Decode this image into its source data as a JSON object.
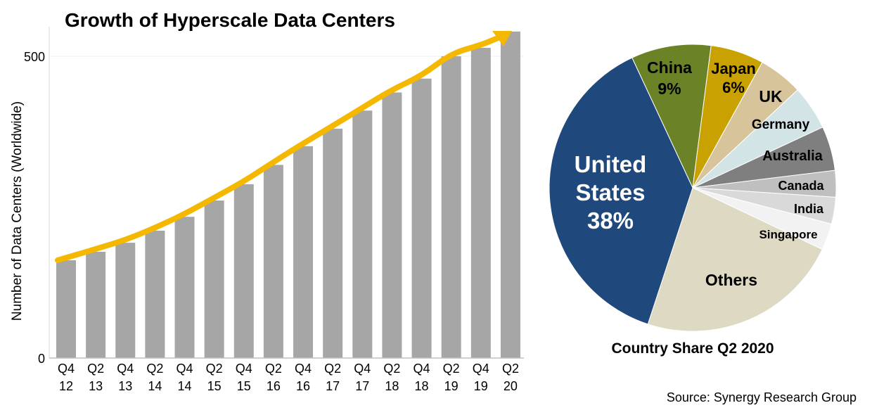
{
  "chart_data": [
    {
      "type": "bar",
      "title": "Growth of Hyperscale Data Centers",
      "ylabel": "Number of Data Centers (Worldwide)",
      "xlabel": "",
      "categories": [
        [
          "Q4",
          "12"
        ],
        [
          "Q2",
          "13"
        ],
        [
          "Q4",
          "13"
        ],
        [
          "Q2",
          "14"
        ],
        [
          "Q4",
          "14"
        ],
        [
          "Q2",
          "15"
        ],
        [
          "Q4",
          "15"
        ],
        [
          "Q2",
          "16"
        ],
        [
          "Q4",
          "16"
        ],
        [
          "Q2",
          "17"
        ],
        [
          "Q4",
          "17"
        ],
        [
          "Q2",
          "18"
        ],
        [
          "Q4",
          "18"
        ],
        [
          "Q2",
          "19"
        ],
        [
          "Q4",
          "19"
        ],
        [
          "Q2",
          "20"
        ]
      ],
      "values": [
        162,
        176,
        191,
        211,
        234,
        261,
        288,
        320,
        351,
        380,
        410,
        440,
        463,
        500,
        514,
        541
      ],
      "ylim": [
        0,
        550
      ],
      "yticks": [
        0,
        500
      ],
      "grid": true,
      "bar_color": "#A6A6A6",
      "trend_arrow_color": "#F5B800"
    },
    {
      "type": "pie",
      "title": "Country Share Q2 2020",
      "slices": [
        {
          "label": "China",
          "pct_label": "9%",
          "value": 9,
          "color": "#6B8227"
        },
        {
          "label": "Japan",
          "pct_label": "6%",
          "value": 6,
          "color": "#C9A100"
        },
        {
          "label": "UK",
          "value": 5,
          "color": "#D8C49B"
        },
        {
          "label": "Germany",
          "value": 5,
          "color": "#D3E4E6"
        },
        {
          "label": "Australia",
          "value": 5,
          "color": "#7F7F7F"
        },
        {
          "label": "Canada",
          "value": 3,
          "color": "#BFBFBF"
        },
        {
          "label": "India",
          "value": 3,
          "color": "#D9D9D9"
        },
        {
          "label": "Singapore",
          "value": 3,
          "color": "#F2F2F2"
        },
        {
          "label": "Others",
          "value": 23,
          "color": "#DDD9C3"
        },
        {
          "label": "United States",
          "label_lines": [
            "United",
            "States"
          ],
          "pct_label": "38%",
          "value": 38,
          "color": "#1F487C"
        }
      ]
    }
  ],
  "source": "Source: Synergy Research Group"
}
